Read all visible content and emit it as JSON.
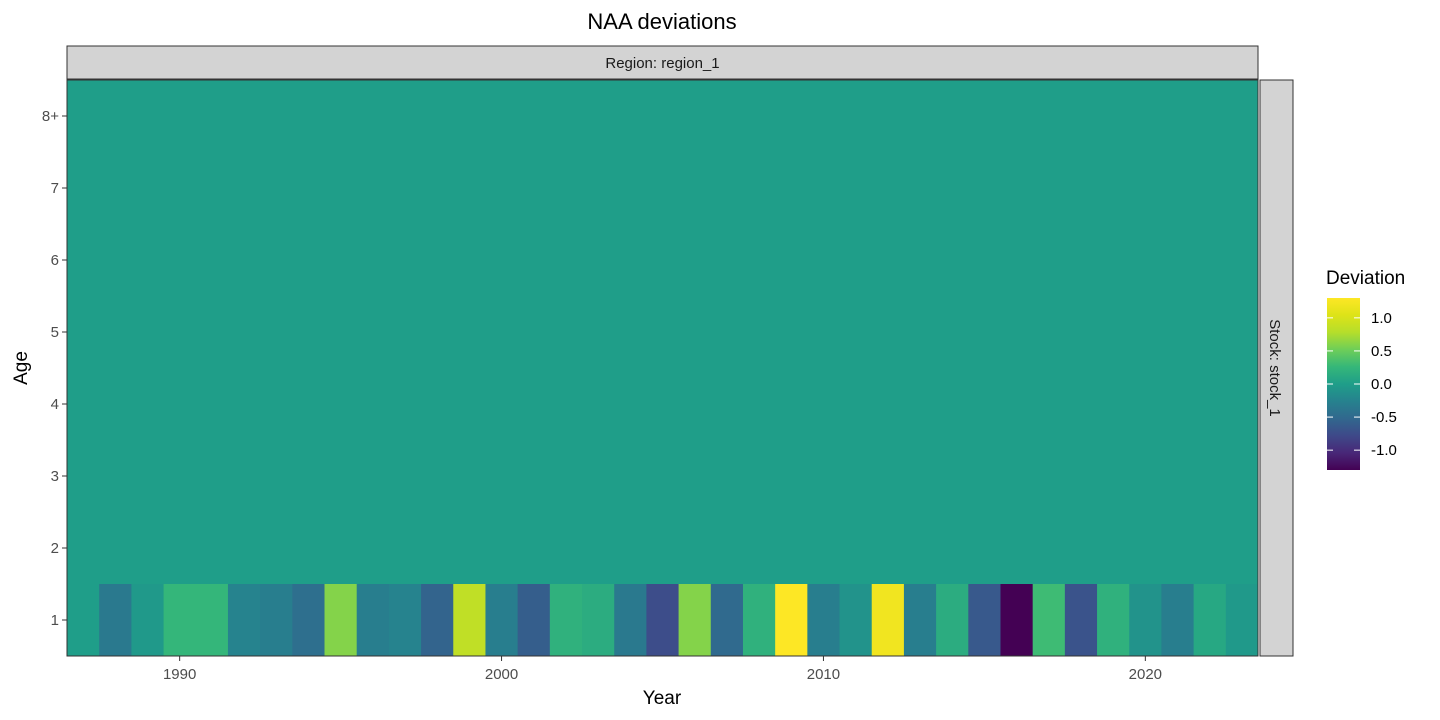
{
  "chart_data": {
    "type": "heatmap",
    "title": "NAA deviations",
    "xlabel": "Year",
    "ylabel": "Age",
    "facet_col_label": "Region: region_1",
    "facet_row_label": "Stock: stock_1",
    "x_ticks": [
      1990,
      2000,
      2010,
      2020
    ],
    "x_range": [
      1986.5,
      2023.5
    ],
    "y_categories": [
      "1",
      "2",
      "3",
      "4",
      "5",
      "6",
      "7",
      "8+"
    ],
    "years": [
      1987,
      1988,
      1989,
      1990,
      1991,
      1992,
      1993,
      1994,
      1995,
      1996,
      1997,
      1998,
      1999,
      2000,
      2001,
      2002,
      2003,
      2004,
      2005,
      2006,
      2007,
      2008,
      2009,
      2010,
      2011,
      2012,
      2013,
      2014,
      2015,
      2016,
      2017,
      2018,
      2019,
      2020,
      2021,
      2022,
      2023
    ],
    "age1_deviations": [
      0.0,
      -0.35,
      -0.05,
      0.25,
      0.25,
      -0.25,
      -0.3,
      -0.45,
      0.6,
      -0.3,
      -0.25,
      -0.55,
      0.85,
      -0.3,
      -0.6,
      0.2,
      0.15,
      -0.35,
      -0.75,
      0.6,
      -0.5,
      0.2,
      1.3,
      -0.3,
      -0.1,
      1.2,
      -0.3,
      0.15,
      -0.65,
      -1.3,
      0.3,
      -0.7,
      0.2,
      -0.1,
      -0.3,
      0.1,
      -0.05
    ],
    "other_ages_value": 0.0,
    "legend": {
      "title": "Deviation",
      "ticks": [
        "1.0",
        "0.5",
        "0.0",
        "-0.5",
        "-1.0"
      ],
      "tick_values": [
        1.0,
        0.5,
        0.0,
        -0.5,
        -1.0
      ],
      "limits": [
        -1.3,
        1.3
      ],
      "colormap": "viridis"
    }
  }
}
